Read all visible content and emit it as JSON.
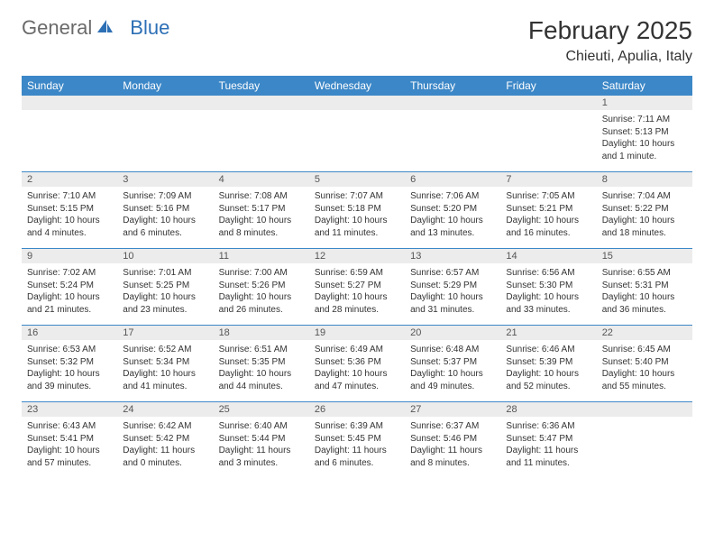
{
  "logo": {
    "gray": "General",
    "blue": "Blue"
  },
  "title": "February 2025",
  "location": "Chieuti, Apulia, Italy",
  "colors": {
    "header_bg": "#3c87c7",
    "header_text": "#ffffff",
    "daynum_bg": "#ececec",
    "row_border": "#3c87c7",
    "body_text": "#333333",
    "logo_gray": "#6a6a6a",
    "logo_blue": "#2d6fb5"
  },
  "day_names": [
    "Sunday",
    "Monday",
    "Tuesday",
    "Wednesday",
    "Thursday",
    "Friday",
    "Saturday"
  ],
  "weeks": [
    {
      "nums": [
        "",
        "",
        "",
        "",
        "",
        "",
        "1"
      ],
      "cells": [
        "",
        "",
        "",
        "",
        "",
        "",
        "Sunrise: 7:11 AM\nSunset: 5:13 PM\nDaylight: 10 hours and 1 minute."
      ]
    },
    {
      "nums": [
        "2",
        "3",
        "4",
        "5",
        "6",
        "7",
        "8"
      ],
      "cells": [
        "Sunrise: 7:10 AM\nSunset: 5:15 PM\nDaylight: 10 hours and 4 minutes.",
        "Sunrise: 7:09 AM\nSunset: 5:16 PM\nDaylight: 10 hours and 6 minutes.",
        "Sunrise: 7:08 AM\nSunset: 5:17 PM\nDaylight: 10 hours and 8 minutes.",
        "Sunrise: 7:07 AM\nSunset: 5:18 PM\nDaylight: 10 hours and 11 minutes.",
        "Sunrise: 7:06 AM\nSunset: 5:20 PM\nDaylight: 10 hours and 13 minutes.",
        "Sunrise: 7:05 AM\nSunset: 5:21 PM\nDaylight: 10 hours and 16 minutes.",
        "Sunrise: 7:04 AM\nSunset: 5:22 PM\nDaylight: 10 hours and 18 minutes."
      ]
    },
    {
      "nums": [
        "9",
        "10",
        "11",
        "12",
        "13",
        "14",
        "15"
      ],
      "cells": [
        "Sunrise: 7:02 AM\nSunset: 5:24 PM\nDaylight: 10 hours and 21 minutes.",
        "Sunrise: 7:01 AM\nSunset: 5:25 PM\nDaylight: 10 hours and 23 minutes.",
        "Sunrise: 7:00 AM\nSunset: 5:26 PM\nDaylight: 10 hours and 26 minutes.",
        "Sunrise: 6:59 AM\nSunset: 5:27 PM\nDaylight: 10 hours and 28 minutes.",
        "Sunrise: 6:57 AM\nSunset: 5:29 PM\nDaylight: 10 hours and 31 minutes.",
        "Sunrise: 6:56 AM\nSunset: 5:30 PM\nDaylight: 10 hours and 33 minutes.",
        "Sunrise: 6:55 AM\nSunset: 5:31 PM\nDaylight: 10 hours and 36 minutes."
      ]
    },
    {
      "nums": [
        "16",
        "17",
        "18",
        "19",
        "20",
        "21",
        "22"
      ],
      "cells": [
        "Sunrise: 6:53 AM\nSunset: 5:32 PM\nDaylight: 10 hours and 39 minutes.",
        "Sunrise: 6:52 AM\nSunset: 5:34 PM\nDaylight: 10 hours and 41 minutes.",
        "Sunrise: 6:51 AM\nSunset: 5:35 PM\nDaylight: 10 hours and 44 minutes.",
        "Sunrise: 6:49 AM\nSunset: 5:36 PM\nDaylight: 10 hours and 47 minutes.",
        "Sunrise: 6:48 AM\nSunset: 5:37 PM\nDaylight: 10 hours and 49 minutes.",
        "Sunrise: 6:46 AM\nSunset: 5:39 PM\nDaylight: 10 hours and 52 minutes.",
        "Sunrise: 6:45 AM\nSunset: 5:40 PM\nDaylight: 10 hours and 55 minutes."
      ]
    },
    {
      "nums": [
        "23",
        "24",
        "25",
        "26",
        "27",
        "28",
        ""
      ],
      "cells": [
        "Sunrise: 6:43 AM\nSunset: 5:41 PM\nDaylight: 10 hours and 57 minutes.",
        "Sunrise: 6:42 AM\nSunset: 5:42 PM\nDaylight: 11 hours and 0 minutes.",
        "Sunrise: 6:40 AM\nSunset: 5:44 PM\nDaylight: 11 hours and 3 minutes.",
        "Sunrise: 6:39 AM\nSunset: 5:45 PM\nDaylight: 11 hours and 6 minutes.",
        "Sunrise: 6:37 AM\nSunset: 5:46 PM\nDaylight: 11 hours and 8 minutes.",
        "Sunrise: 6:36 AM\nSunset: 5:47 PM\nDaylight: 11 hours and 11 minutes.",
        ""
      ]
    }
  ]
}
